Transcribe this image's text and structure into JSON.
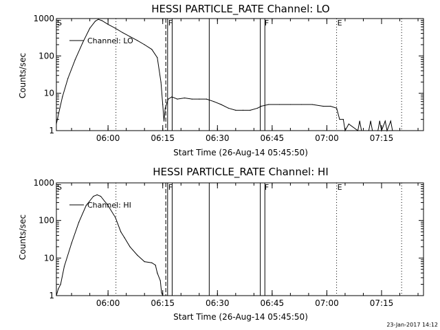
{
  "footer": "23-Jan-2017 14:12",
  "chart_data": [
    {
      "type": "line",
      "title": "HESSI PARTICLE_RATE Channel: LO",
      "xlabel": "Start Time (26-Aug-14 05:45:50)",
      "ylabel": "Counts/sec",
      "y_scale": "log",
      "ylim": [
        1,
        1000
      ],
      "xlim": [
        "05:45:50",
        "07:26:30"
      ],
      "x_ticks": [
        "06:00",
        "06:15",
        "06:30",
        "06:45",
        "07:00",
        "07:15"
      ],
      "y_ticks": [
        "1",
        "10",
        "100",
        "1000"
      ],
      "legend": {
        "position": "top-left",
        "entries": [
          "Channel: LO"
        ]
      },
      "flags": [
        {
          "label": "S",
          "time": "05:45:50",
          "style": "solid"
        },
        {
          "label": "F",
          "time": "06:16:20",
          "style": "solid"
        },
        {
          "label": "F",
          "time": "06:42:45",
          "style": "solid"
        },
        {
          "label": "E",
          "time": "07:02:40",
          "style": "dotted"
        }
      ],
      "markers": [
        {
          "time": "06:02:10",
          "style": "dotted"
        },
        {
          "time": "06:15:50",
          "style": "dashed"
        },
        {
          "time": "06:16:20",
          "style": "solid"
        },
        {
          "time": "06:17:35",
          "style": "solid"
        },
        {
          "time": "06:27:45",
          "style": "solid"
        },
        {
          "time": "06:41:45",
          "style": "solid"
        },
        {
          "time": "06:43:00",
          "style": "solid"
        },
        {
          "time": "07:02:40",
          "style": "dotted"
        },
        {
          "time": "07:20:30",
          "style": "dotted"
        }
      ],
      "series": [
        {
          "name": "Channel: LO",
          "points": [
            [
              "05:45:50",
              1.5
            ],
            [
              "05:46:30",
              3
            ],
            [
              "05:47:30",
              8
            ],
            [
              "05:49:00",
              25
            ],
            [
              "05:51:00",
              80
            ],
            [
              "05:53:00",
              220
            ],
            [
              "05:55:00",
              550
            ],
            [
              "05:56:30",
              850
            ],
            [
              "05:57:20",
              950
            ],
            [
              "05:58:20",
              880
            ],
            [
              "06:00:00",
              700
            ],
            [
              "06:02:00",
              550
            ],
            [
              "06:04:00",
              420
            ],
            [
              "06:06:00",
              330
            ],
            [
              "06:08:00",
              260
            ],
            [
              "06:10:00",
              200
            ],
            [
              "06:12:00",
              150
            ],
            [
              "06:13:30",
              90
            ],
            [
              "06:14:30",
              20
            ],
            [
              "06:15:00",
              5
            ],
            [
              "06:15:20",
              1.8
            ],
            [
              "06:15:40",
              4
            ],
            [
              "06:16:30",
              7
            ],
            [
              "06:17:30",
              8
            ],
            [
              "06:19:00",
              7
            ],
            [
              "06:21:00",
              7.5
            ],
            [
              "06:23:00",
              7
            ],
            [
              "06:25:00",
              7
            ],
            [
              "06:27:00",
              7
            ],
            [
              "06:29:00",
              6
            ],
            [
              "06:31:00",
              5
            ],
            [
              "06:33:00",
              4
            ],
            [
              "06:35:00",
              3.5
            ],
            [
              "06:37:00",
              3.5
            ],
            [
              "06:39:00",
              3.5
            ],
            [
              "06:41:00",
              4
            ],
            [
              "06:42:00",
              4.5
            ],
            [
              "06:44:00",
              5
            ],
            [
              "06:47:00",
              5
            ],
            [
              "06:50:00",
              5
            ],
            [
              "06:53:00",
              5
            ],
            [
              "06:56:00",
              5
            ],
            [
              "06:59:00",
              4.5
            ],
            [
              "07:01:00",
              4.5
            ],
            [
              "07:02:40",
              4
            ],
            [
              "07:03:30",
              2
            ],
            [
              "07:04:30",
              2
            ],
            [
              "07:05:00",
              1
            ],
            [
              "07:06:00",
              1.5
            ],
            [
              "07:08:30",
              1
            ],
            [
              "07:09:00",
              1.8
            ],
            [
              "07:09:30",
              1
            ],
            [
              "07:11:30",
              1
            ],
            [
              "07:12:00",
              1.8
            ],
            [
              "07:12:30",
              1
            ],
            [
              "07:14:00",
              1
            ],
            [
              "07:14:30",
              1.8
            ],
            [
              "07:15:00",
              1
            ],
            [
              "07:16:00",
              1.8
            ],
            [
              "07:16:30",
              1
            ],
            [
              "07:17:30",
              1.8
            ],
            [
              "07:18:00",
              1
            ]
          ]
        }
      ]
    },
    {
      "type": "line",
      "title": "HESSI PARTICLE_RATE Channel: HI",
      "xlabel": "Start Time (26-Aug-14 05:45:50)",
      "ylabel": "Counts/sec",
      "y_scale": "log",
      "ylim": [
        1,
        1000
      ],
      "xlim": [
        "05:45:50",
        "07:26:30"
      ],
      "x_ticks": [
        "06:00",
        "06:15",
        "06:30",
        "06:45",
        "07:00",
        "07:15"
      ],
      "y_ticks": [
        "1",
        "10",
        "100",
        "1000"
      ],
      "legend": {
        "position": "top-left",
        "entries": [
          "Channel: HI"
        ]
      },
      "flags": [
        {
          "label": "S",
          "time": "05:45:50",
          "style": "solid"
        },
        {
          "label": "F",
          "time": "06:16:20",
          "style": "solid"
        },
        {
          "label": "F",
          "time": "06:42:45",
          "style": "solid"
        },
        {
          "label": "E",
          "time": "07:02:40",
          "style": "dotted"
        }
      ],
      "markers": [
        {
          "time": "06:02:10",
          "style": "dotted"
        },
        {
          "time": "06:15:50",
          "style": "dashed"
        },
        {
          "time": "06:16:20",
          "style": "solid"
        },
        {
          "time": "06:17:35",
          "style": "solid"
        },
        {
          "time": "06:27:45",
          "style": "solid"
        },
        {
          "time": "06:41:45",
          "style": "solid"
        },
        {
          "time": "06:43:00",
          "style": "solid"
        },
        {
          "time": "07:02:40",
          "style": "dotted"
        },
        {
          "time": "07:20:30",
          "style": "dotted"
        }
      ],
      "series": [
        {
          "name": "Channel: HI",
          "points": [
            [
              "05:45:50",
              1
            ],
            [
              "05:46:20",
              1.5
            ],
            [
              "05:47:00",
              2
            ],
            [
              "05:48:00",
              6
            ],
            [
              "05:50:00",
              25
            ],
            [
              "05:52:00",
              90
            ],
            [
              "05:54:00",
              250
            ],
            [
              "05:56:00",
              440
            ],
            [
              "05:57:00",
              480
            ],
            [
              "05:58:00",
              440
            ],
            [
              "06:00:00",
              250
            ],
            [
              "06:02:00",
              120
            ],
            [
              "06:03:30",
              50
            ],
            [
              "06:04:30",
              35
            ],
            [
              "06:06:00",
              20
            ],
            [
              "06:08:00",
              12
            ],
            [
              "06:10:00",
              8
            ],
            [
              "06:12:00",
              7.5
            ],
            [
              "06:13:00",
              6.5
            ],
            [
              "06:13:30",
              4
            ],
            [
              "06:14:20",
              2.5
            ],
            [
              "06:14:40",
              1.2
            ],
            [
              "06:15:00",
              1
            ]
          ]
        }
      ]
    }
  ]
}
